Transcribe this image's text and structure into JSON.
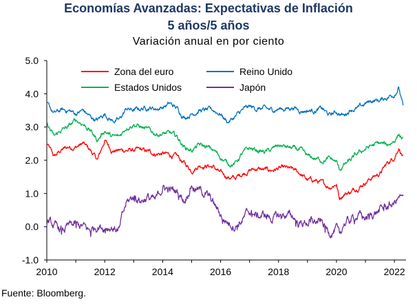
{
  "header": {
    "title": "Economías Avanzadas: Expectativas de Inflación",
    "title_line2": "5 años/5 años",
    "subtitle": "Variación anual en por ciento"
  },
  "footer": {
    "source": "Fuente: Bloomberg."
  },
  "chart_data": {
    "type": "line",
    "title": "Economías Avanzadas: Expectativas de Inflación 5 años/5 años",
    "subtitle": "Variación anual en por ciento",
    "xlabel": "",
    "ylabel": "",
    "xlim": [
      2010,
      2022.4
    ],
    "ylim": [
      -1.0,
      5.0
    ],
    "y_ticks": [
      "-1.0",
      "0.0",
      "1.0",
      "2.0",
      "3.0",
      "4.0",
      "5.0"
    ],
    "x_ticks": [
      "2010",
      "2012",
      "2014",
      "2016",
      "2018",
      "2020",
      "2022"
    ],
    "grid": false,
    "legend_position": "top",
    "series": [
      {
        "name": "Zona del euro",
        "color": "#ff0000",
        "x": [
          2010.0,
          2010.25,
          2010.5,
          2010.75,
          2011.0,
          2011.25,
          2011.5,
          2011.75,
          2012.0,
          2012.25,
          2012.5,
          2012.75,
          2013.0,
          2013.25,
          2013.5,
          2013.75,
          2014.0,
          2014.25,
          2014.5,
          2014.75,
          2015.0,
          2015.25,
          2015.5,
          2015.75,
          2016.0,
          2016.25,
          2016.5,
          2016.75,
          2017.0,
          2017.25,
          2017.5,
          2017.75,
          2018.0,
          2018.25,
          2018.5,
          2018.75,
          2019.0,
          2019.25,
          2019.5,
          2019.75,
          2020.0,
          2020.1,
          2020.25,
          2020.5,
          2020.75,
          2021.0,
          2021.25,
          2021.5,
          2021.75,
          2022.0,
          2022.15,
          2022.3
        ],
        "values": [
          2.5,
          2.1,
          2.3,
          2.4,
          2.4,
          2.5,
          2.3,
          2.0,
          2.6,
          2.3,
          2.3,
          2.3,
          2.3,
          2.3,
          2.25,
          2.2,
          2.2,
          2.15,
          2.1,
          1.9,
          1.7,
          1.85,
          1.85,
          1.8,
          1.6,
          1.5,
          1.45,
          1.6,
          1.7,
          1.75,
          1.7,
          1.7,
          1.75,
          1.75,
          1.7,
          1.6,
          1.4,
          1.4,
          1.3,
          1.2,
          1.3,
          0.85,
          1.0,
          1.05,
          1.2,
          1.35,
          1.5,
          1.6,
          1.9,
          2.1,
          2.4,
          2.1
        ]
      },
      {
        "name": "Reino Unido",
        "color": "#0070c0",
        "x": [
          2010.0,
          2010.25,
          2010.5,
          2010.75,
          2011.0,
          2011.25,
          2011.5,
          2011.75,
          2012.0,
          2012.25,
          2012.5,
          2012.75,
          2013.0,
          2013.25,
          2013.5,
          2013.75,
          2014.0,
          2014.25,
          2014.5,
          2014.75,
          2015.0,
          2015.25,
          2015.5,
          2015.75,
          2016.0,
          2016.25,
          2016.5,
          2016.75,
          2017.0,
          2017.25,
          2017.5,
          2017.75,
          2018.0,
          2018.25,
          2018.5,
          2018.75,
          2019.0,
          2019.25,
          2019.5,
          2019.75,
          2020.0,
          2020.25,
          2020.5,
          2020.75,
          2021.0,
          2021.25,
          2021.5,
          2021.75,
          2022.0,
          2022.15,
          2022.3
        ],
        "values": [
          3.7,
          3.4,
          3.5,
          3.5,
          3.4,
          3.5,
          3.3,
          3.2,
          3.4,
          3.2,
          3.2,
          3.55,
          3.5,
          3.55,
          3.6,
          3.55,
          3.6,
          3.7,
          3.55,
          3.3,
          3.4,
          3.5,
          3.5,
          3.5,
          3.4,
          3.15,
          3.3,
          3.5,
          3.6,
          3.55,
          3.55,
          3.5,
          3.55,
          3.55,
          3.6,
          3.5,
          3.5,
          3.5,
          3.55,
          3.35,
          3.45,
          3.35,
          3.55,
          3.55,
          3.7,
          3.8,
          3.8,
          3.9,
          4.0,
          4.2,
          3.6
        ]
      },
      {
        "name": "Estados Unidos",
        "color": "#00b050",
        "x": [
          2010.0,
          2010.25,
          2010.5,
          2010.75,
          2011.0,
          2011.25,
          2011.5,
          2011.75,
          2012.0,
          2012.25,
          2012.5,
          2012.75,
          2013.0,
          2013.25,
          2013.5,
          2013.75,
          2014.0,
          2014.25,
          2014.5,
          2014.75,
          2015.0,
          2015.25,
          2015.5,
          2015.75,
          2016.0,
          2016.25,
          2016.5,
          2016.75,
          2017.0,
          2017.25,
          2017.5,
          2017.75,
          2018.0,
          2018.25,
          2018.5,
          2018.75,
          2019.0,
          2019.25,
          2019.5,
          2019.75,
          2020.0,
          2020.1,
          2020.25,
          2020.5,
          2020.75,
          2021.0,
          2021.25,
          2021.5,
          2021.75,
          2022.0,
          2022.15,
          2022.3
        ],
        "values": [
          3.1,
          2.7,
          2.9,
          3.0,
          3.2,
          3.1,
          2.9,
          2.6,
          2.9,
          2.7,
          2.7,
          3.0,
          3.1,
          3.0,
          2.9,
          2.8,
          2.8,
          2.8,
          2.7,
          2.4,
          2.3,
          2.45,
          2.4,
          2.3,
          2.1,
          1.9,
          1.9,
          2.2,
          2.35,
          2.3,
          2.25,
          2.3,
          2.45,
          2.4,
          2.35,
          2.3,
          2.1,
          2.05,
          2.0,
          2.05,
          1.95,
          1.7,
          1.85,
          2.0,
          2.2,
          2.35,
          2.45,
          2.5,
          2.45,
          2.6,
          2.8,
          2.6
        ]
      },
      {
        "name": "Japón",
        "color": "#7030a0",
        "x": [
          2010.0,
          2010.25,
          2010.5,
          2010.75,
          2011.0,
          2011.25,
          2011.5,
          2011.75,
          2012.0,
          2012.25,
          2012.5,
          2012.75,
          2013.0,
          2013.25,
          2013.5,
          2013.75,
          2014.0,
          2014.25,
          2014.5,
          2014.75,
          2015.0,
          2015.25,
          2015.5,
          2015.75,
          2016.0,
          2016.25,
          2016.5,
          2016.75,
          2017.0,
          2017.25,
          2017.5,
          2017.75,
          2018.0,
          2018.25,
          2018.5,
          2018.75,
          2019.0,
          2019.25,
          2019.5,
          2019.75,
          2020.0,
          2020.1,
          2020.25,
          2020.5,
          2020.75,
          2021.0,
          2021.25,
          2021.5,
          2021.75,
          2022.0,
          2022.15,
          2022.3
        ],
        "values": [
          0.2,
          0.0,
          -0.1,
          0.0,
          0.05,
          0.0,
          -0.15,
          0.05,
          0.0,
          0.0,
          -0.1,
          0.7,
          0.9,
          0.8,
          0.9,
          0.75,
          1.2,
          1.1,
          1.05,
          0.8,
          1.3,
          1.1,
          1.0,
          0.7,
          0.35,
          0.15,
          0.05,
          0.2,
          0.45,
          0.3,
          0.35,
          0.25,
          0.3,
          0.35,
          0.3,
          0.1,
          0.15,
          0.15,
          0.1,
          -0.15,
          -0.05,
          -0.35,
          0.1,
          0.2,
          0.35,
          0.25,
          0.4,
          0.5,
          0.6,
          0.7,
          0.9,
          0.8
        ]
      }
    ]
  }
}
